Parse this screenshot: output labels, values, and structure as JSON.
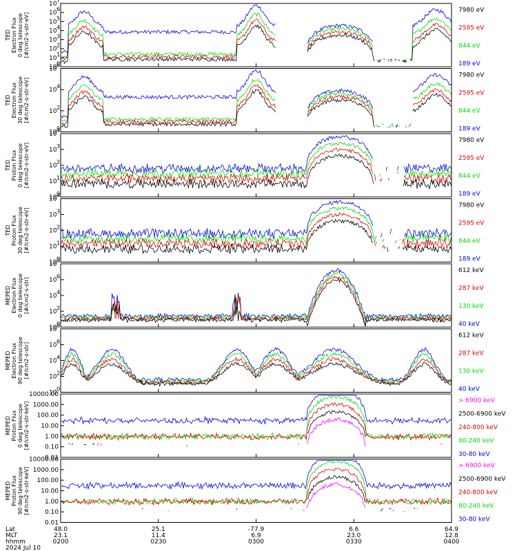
{
  "colors": {
    "black": "#000000",
    "red": "#dd0000",
    "green": "#00dd00",
    "blue": "#0000dd",
    "magenta": "#ff00ff"
  },
  "chart_data": [
    {
      "type": "line",
      "ylabel": [
        "TED",
        "Electron Flux",
        "0 deg telescope",
        "[#/cm2-s-str-eV]"
      ],
      "log": true,
      "tick_style": "pow",
      "yexp": [
        0,
        1,
        2,
        3,
        4,
        5,
        6,
        7
      ],
      "legend": [
        {
          "label": "7980 eV",
          "color": "black"
        },
        {
          "label": "2595 eV",
          "color": "red"
        },
        {
          "label": "844 eV",
          "color": "green"
        },
        {
          "label": "189 eV",
          "color": "blue"
        }
      ]
    },
    {
      "type": "line",
      "ylabel": [
        "TED",
        "Electron Flux",
        "30 deg telescope",
        "[#/cm2-s-str-eV]"
      ],
      "log": true,
      "tick_style": "pow",
      "yexp": [
        0,
        2,
        4,
        6
      ],
      "legend": [
        {
          "label": "7980 eV",
          "color": "black"
        },
        {
          "label": "2595 eV",
          "color": "red"
        },
        {
          "label": "844 eV",
          "color": "green"
        },
        {
          "label": "189 eV",
          "color": "blue"
        }
      ]
    },
    {
      "type": "line",
      "ylabel": [
        "TED",
        "Proton Flux",
        "0 deg telescope",
        "[#/cm2-s-str-eV]"
      ],
      "log": true,
      "tick_style": "pow",
      "yexp": [
        0,
        1,
        2,
        3,
        4
      ],
      "legend": [
        {
          "label": "7980 eV",
          "color": "black"
        },
        {
          "label": "2595 eV",
          "color": "red"
        },
        {
          "label": "844 eV",
          "color": "green"
        },
        {
          "label": "189 eV",
          "color": "blue"
        }
      ]
    },
    {
      "type": "line",
      "ylabel": [
        "TED",
        "Proton Flux",
        "30 deg telescope",
        "[#/cm2-s-str-eV]"
      ],
      "log": true,
      "tick_style": "pow",
      "yexp": [
        0,
        1,
        2,
        3,
        4
      ],
      "legend": [
        {
          "label": "7980 eV",
          "color": "black"
        },
        {
          "label": "2595 eV",
          "color": "red"
        },
        {
          "label": "844 eV",
          "color": "green"
        },
        {
          "label": "189 eV",
          "color": "blue"
        }
      ]
    },
    {
      "type": "line",
      "ylabel": [
        "MEPED",
        "Electron Flux",
        "0 deg telescope",
        "[#/cm2-s-str]"
      ],
      "log": true,
      "tick_style": "pow",
      "yexp": [
        0,
        2,
        4,
        6,
        8
      ],
      "legend": [
        {
          "label": "612 keV",
          "color": "black"
        },
        {
          "label": "287 keV",
          "color": "red"
        },
        {
          "label": "130 keV",
          "color": "green"
        },
        {
          "label": "40 keV",
          "color": "blue"
        }
      ]
    },
    {
      "type": "line",
      "ylabel": [
        "MEPED",
        "Electron Flux",
        "90 deg telescope",
        "[#/cm2-s-str]"
      ],
      "log": true,
      "tick_style": "pow",
      "yexp": [
        0,
        2,
        4,
        6,
        8
      ],
      "legend": [
        {
          "label": "612 keV",
          "color": "black"
        },
        {
          "label": "287 keV",
          "color": "red"
        },
        {
          "label": "130 keV",
          "color": "green"
        },
        {
          "label": "40 keV",
          "color": "blue"
        }
      ]
    },
    {
      "type": "line",
      "ylabel": [
        "MEPED",
        "Proton Flux",
        "0 deg telescope",
        "[#/cm2-s-str-keV]"
      ],
      "log": true,
      "tick_style": "dec",
      "yticks": [
        "0.01",
        "0.10",
        "1.00",
        "10.00",
        "100.00",
        "1000.00",
        "10000.00"
      ],
      "legend": [
        {
          "label": "> 6900 keV",
          "color": "magenta"
        },
        {
          "label": "2500-6900 keV",
          "color": "black"
        },
        {
          "label": "240-800 keV",
          "color": "red"
        },
        {
          "label": "80-240 keV",
          "color": "green"
        },
        {
          "label": "30-80 keV",
          "color": "blue"
        }
      ]
    },
    {
      "type": "line",
      "ylabel": [
        "MEPED",
        "Proton Flux",
        "90 deg telescope",
        "[#/cm2-s-str-keV]"
      ],
      "log": true,
      "tick_style": "dec",
      "yticks": [
        "0.01",
        "0.10",
        "1.00",
        "10.00",
        "100.00",
        "1000.00",
        "10000.00"
      ],
      "legend": [
        {
          "label": "> 6900 keV",
          "color": "magenta"
        },
        {
          "label": "2500-6900 keV",
          "color": "black"
        },
        {
          "label": "240-800 keV",
          "color": "red"
        },
        {
          "label": "80-240 keV",
          "color": "green"
        },
        {
          "label": "30-80 keV",
          "color": "blue"
        }
      ]
    }
  ],
  "xaxis": {
    "row_labels": [
      "Lat",
      "MLT",
      "hhmm"
    ],
    "ticks": [
      {
        "time": "0200",
        "lat": "48.0",
        "mlt": "23.1",
        "hhmm": "0200"
      },
      {
        "time": "0230",
        "lat": "25.1",
        "mlt": "11.4",
        "hhmm": "0230"
      },
      {
        "time": "0300",
        "lat": "-77.9",
        "mlt": "6.9",
        "hhmm": "0300"
      },
      {
        "time": "0330",
        "lat": "6.6",
        "mlt": "23.0",
        "hhmm": "0330"
      },
      {
        "time": "0400",
        "lat": "64.9",
        "mlt": "12.8",
        "hhmm": "0400"
      }
    ],
    "date": "2024 Jul 10"
  }
}
